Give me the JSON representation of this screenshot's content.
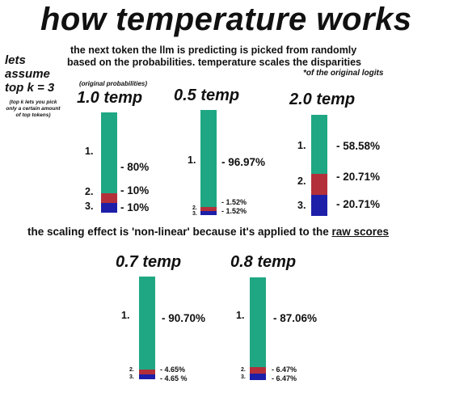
{
  "title": "how temperature works",
  "subtitle_line1": "the next token the llm is predicting is picked from randomly",
  "subtitle_line2": "based on the probabilities. temperature scales the disparities",
  "footnote": "*of the original logits",
  "side_note": "lets assume top k = 3",
  "topk_note": "(top k lets you pick only a certain amount of top tokens)",
  "original_note": "(original probabilities)",
  "scaling_note_prefix": "the scaling effect is 'non-linear' because it's applied to the ",
  "scaling_note_underlined": "raw scores",
  "colors": {
    "token1": "#1fa783",
    "token2": "#b3303a",
    "token3": "#1d1fa8"
  },
  "diagrams": [
    {
      "title": "1.0 temp",
      "labels": [
        "1.",
        "2.",
        "3."
      ],
      "values_text": [
        "- 80%",
        "- 10%",
        "- 10%"
      ],
      "probabilities": [
        0.8,
        0.1,
        0.1
      ]
    },
    {
      "title": "0.5 temp",
      "labels": [
        "1.",
        "2.",
        "3."
      ],
      "values_text": [
        "- 96.97%",
        "- 1.52%",
        "- 1.52%"
      ],
      "probabilities": [
        0.9697,
        0.0152,
        0.0152
      ]
    },
    {
      "title": "2.0 temp",
      "labels": [
        "1.",
        "2.",
        "3."
      ],
      "values_text": [
        "- 58.58%",
        "- 20.71%",
        "- 20.71%"
      ],
      "probabilities": [
        0.5858,
        0.2071,
        0.2071
      ]
    },
    {
      "title": "0.7 temp",
      "labels": [
        "1.",
        "2.",
        "3."
      ],
      "values_text": [
        "- 90.70%",
        "- 4.65%",
        "- 4.65 %"
      ],
      "probabilities": [
        0.907,
        0.0465,
        0.0465
      ]
    },
    {
      "title": "0.8 temp",
      "labels": [
        "1.",
        "2.",
        "3."
      ],
      "values_text": [
        "- 87.06%",
        "- 6.47%",
        "- 6.47%"
      ],
      "probabilities": [
        0.8706,
        0.0647,
        0.0647
      ]
    }
  ]
}
